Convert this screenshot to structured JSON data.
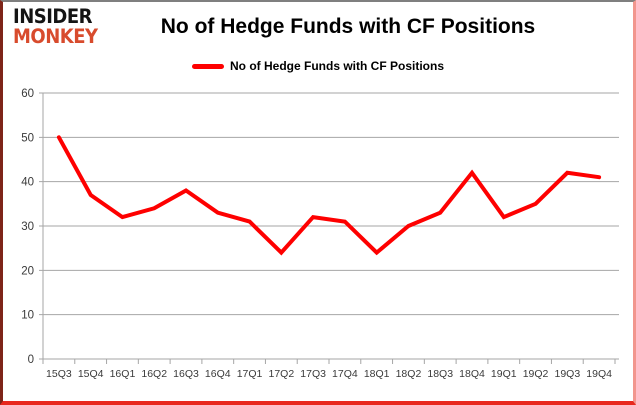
{
  "logo": {
    "line1": "INSIDER",
    "line2": "MONKEY",
    "accent_color": "#d84b2d"
  },
  "header": {
    "title": "No of Hedge Funds with CF Positions"
  },
  "legend": {
    "label": "No of Hedge Funds with CF Positions",
    "swatch_color": "#fe0000",
    "position": "top"
  },
  "chart_data": {
    "type": "line",
    "title": "No of Hedge Funds with CF Positions",
    "series_name": "No of Hedge Funds with CF Positions",
    "categories": [
      "15Q3",
      "15Q4",
      "16Q1",
      "16Q2",
      "16Q3",
      "16Q4",
      "17Q1",
      "17Q2",
      "17Q3",
      "17Q4",
      "18Q1",
      "18Q2",
      "18Q3",
      "18Q4",
      "19Q1",
      "19Q2",
      "19Q3",
      "19Q4"
    ],
    "values": [
      50,
      37,
      32,
      34,
      38,
      33,
      31,
      24,
      32,
      31,
      24,
      30,
      33,
      42,
      32,
      35,
      42,
      41
    ],
    "xlabel": "",
    "ylabel": "",
    "ylim": [
      0,
      60
    ],
    "ytick_step": 10,
    "yticks": [
      0,
      10,
      20,
      30,
      40,
      50,
      60
    ],
    "grid": true,
    "gridline_color": "#a6a6a6",
    "line_color": "#fe0000",
    "line_width": 4,
    "legend_position": "top"
  }
}
